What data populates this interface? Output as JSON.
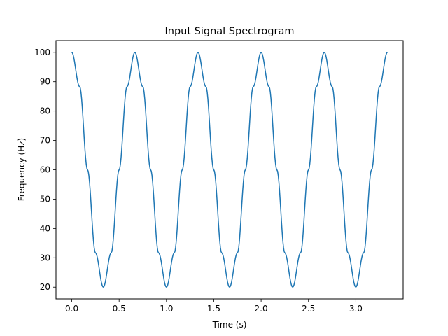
{
  "chart_data": {
    "type": "line",
    "title": "Input Signal Spectrogram",
    "xlabel": "Time (s)",
    "ylabel": "Frequency (Hz)",
    "xlim": [
      -0.1667,
      3.5
    ],
    "ylim": [
      16,
      104
    ],
    "xticks": [
      0.0,
      0.5,
      1.0,
      1.5,
      2.0,
      2.5,
      3.0
    ],
    "xtick_labels": [
      "0.0",
      "0.5",
      "1.0",
      "1.5",
      "2.0",
      "2.5",
      "3.0"
    ],
    "yticks": [
      20,
      30,
      40,
      50,
      60,
      70,
      80,
      90,
      100
    ],
    "ytick_labels": [
      "20",
      "30",
      "40",
      "50",
      "60",
      "70",
      "80",
      "90",
      "100"
    ],
    "grid": false,
    "legend": false,
    "series": [
      {
        "color": "#1f77b4",
        "x": [
          0.0,
          0.0833,
          0.1667,
          0.25,
          0.3333,
          0.4167,
          0.5,
          0.5833,
          0.6667,
          0.75,
          0.8333,
          0.9167,
          1.0,
          1.0833,
          1.1667,
          1.25,
          1.3333,
          1.4167,
          1.5,
          1.5833,
          1.6667,
          1.75,
          1.8333,
          1.9167,
          2.0,
          2.0833,
          2.1667,
          2.25,
          2.3333,
          2.4167,
          2.5,
          2.5833,
          2.6667,
          2.75,
          2.8333,
          2.9167,
          3.0,
          3.0833,
          3.1667,
          3.25,
          3.3333
        ],
        "y": [
          100,
          88.3,
          60,
          31.7,
          20,
          31.7,
          60,
          88.3,
          100,
          88.3,
          60,
          31.7,
          20,
          31.7,
          60,
          88.3,
          100,
          88.3,
          60,
          31.7,
          20,
          31.7,
          60,
          88.3,
          100,
          88.3,
          60,
          31.7,
          20,
          31.7,
          60,
          88.3,
          100,
          88.3,
          60,
          31.7,
          20,
          31.7,
          60,
          88.3,
          100
        ]
      }
    ]
  }
}
